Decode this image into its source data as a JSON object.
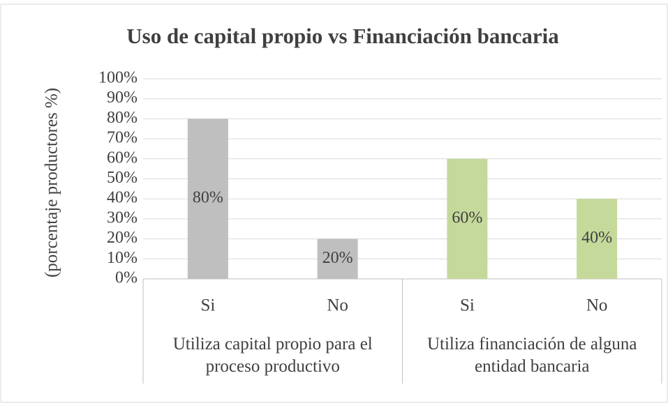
{
  "chart_data": {
    "type": "bar",
    "title": "Uso de capital propio vs Financiación bancaria",
    "y_label": "(porcentaje productores %)",
    "categories": [
      "Si",
      "No",
      "Si",
      "No"
    ],
    "groups": [
      "Utiliza capital propio para el proceso productivo",
      "Utiliza financiación de alguna entidad bancaria"
    ],
    "values": [
      80,
      20,
      60,
      40
    ],
    "value_labels": [
      "80%",
      "20%",
      "60%",
      "40%"
    ],
    "colors": [
      "#bfbfbf",
      "#bfbfbf",
      "#c5d99b",
      "#c5d99b"
    ],
    "ylim": [
      0,
      100
    ],
    "yticks": [
      {
        "value": 0,
        "label": "0%"
      },
      {
        "value": 10,
        "label": "10%"
      },
      {
        "value": 20,
        "label": "20%"
      },
      {
        "value": 30,
        "label": "30%"
      },
      {
        "value": 40,
        "label": "40%"
      },
      {
        "value": 50,
        "label": "50%"
      },
      {
        "value": 60,
        "label": "60%"
      },
      {
        "value": 70,
        "label": "70%"
      },
      {
        "value": 80,
        "label": "80%"
      },
      {
        "value": 90,
        "label": "90%"
      },
      {
        "value": 100,
        "label": "100%"
      }
    ],
    "grid": true
  }
}
